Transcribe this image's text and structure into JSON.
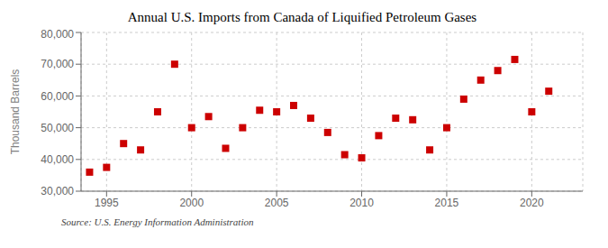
{
  "chart_data": {
    "type": "scatter",
    "title": "Annual U.S. Imports from Canada of Liquified Petroleum Gases",
    "y_label": "Thousand Barrels",
    "annotations": [
      "Source: U.S. Energy Information Administration"
    ],
    "x": [
      1994,
      1995,
      1996,
      1997,
      1998,
      1999,
      2000,
      2001,
      2002,
      2003,
      2004,
      2005,
      2006,
      2007,
      2008,
      2009,
      2010,
      2011,
      2012,
      2013,
      2014,
      2015,
      2016,
      2017,
      2018,
      2019,
      2020,
      2021
    ],
    "values": [
      36000,
      37500,
      45000,
      43000,
      55000,
      70000,
      50000,
      53500,
      43500,
      50000,
      55500,
      55000,
      57000,
      53000,
      48500,
      41500,
      40500,
      47500,
      53000,
      52500,
      43000,
      50000,
      59000,
      65000,
      68000,
      71500,
      55000,
      61500
    ],
    "xlim": [
      1993.5,
      2023
    ],
    "xticks": [
      1995,
      2000,
      2005,
      2010,
      2015,
      2020
    ],
    "ylim": [
      30000,
      80000
    ],
    "yticks": [
      {
        "value": 30000,
        "label": "30,000"
      },
      {
        "value": 40000,
        "label": "40,000"
      },
      {
        "value": 50000,
        "label": "50,000"
      },
      {
        "value": 60000,
        "label": "60,000"
      },
      {
        "value": 70000,
        "label": "70,000"
      },
      {
        "value": 80000,
        "label": "80,000"
      }
    ],
    "color": "#cc0000",
    "marker": "square",
    "grid": true
  }
}
